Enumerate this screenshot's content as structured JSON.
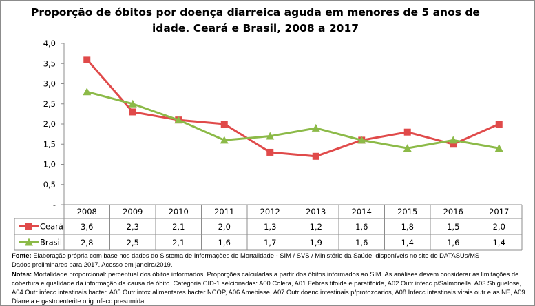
{
  "chart_data": {
    "type": "line",
    "title": "Proporção de óbitos por doença diarreica aguda em menores de 5 anos de idade. Ceará e Brasil, 2008 a 2017",
    "categories": [
      "2008",
      "2009",
      "2010",
      "2011",
      "2012",
      "2013",
      "2014",
      "2015",
      "2016",
      "2017"
    ],
    "series": [
      {
        "name": "Ceará",
        "marker": "square",
        "color": "#e04a4a",
        "values": [
          3.6,
          2.3,
          2.1,
          2.0,
          1.3,
          1.2,
          1.6,
          1.8,
          1.5,
          2.0
        ],
        "labels": [
          "3,6",
          "2,3",
          "2,1",
          "2,0",
          "1,3",
          "1,2",
          "1,6",
          "1,8",
          "1,5",
          "2,0"
        ]
      },
      {
        "name": "Brasil",
        "marker": "triangle",
        "color": "#8cba48",
        "values": [
          2.8,
          2.5,
          2.1,
          1.6,
          1.7,
          1.9,
          1.6,
          1.4,
          1.6,
          1.4
        ],
        "labels": [
          "2,8",
          "2,5",
          "2,1",
          "1,6",
          "1,7",
          "1,9",
          "1,6",
          "1,4",
          "1,6",
          "1,4"
        ]
      }
    ],
    "ylim": [
      0,
      4
    ],
    "yticks": [
      "-",
      "0,5",
      "1,0",
      "1,5",
      "2,0",
      "2,5",
      "3,0",
      "3,5",
      "4,0"
    ],
    "grid": false,
    "legend": "data-table"
  },
  "notes": {
    "fonte_label": "Fonte:",
    "fonte_text": " Elaboração própria com base nos dados do Sistema de Informações de Mortalidade - SIM / SVS / Ministério da Saúde, disponíveis no site do DATASUs/MS",
    "fonte_text2": "Dados preliminares para 2017. Acesso em janeiro/2019.",
    "notas_label": "Notas:",
    "notas_text": " Mortalidade proporcional: percentual dos óbitos informados. Proporções calculadas a partir dos óbitos informados ao SIM. As análises devem considerar as limitações de cobertura e qualidade da informação da causa de óbito. Categoria CID-1 selcionadas: A00 Colera, A01 Febres tifoide e paratifoide, A02 Outr infecc p/Salmonella, A03 Shiguelose, A04 Outr infecc intestinais bacter, A05 Outr intox alimentares bacter NCOP, A06 Amebiase, A07 Outr doenc intestinais p/protozoarios, A08 Infecc intestinais virais outr e as NE, A09 Diarreia e gastroenterite orig infecc presumida."
  }
}
